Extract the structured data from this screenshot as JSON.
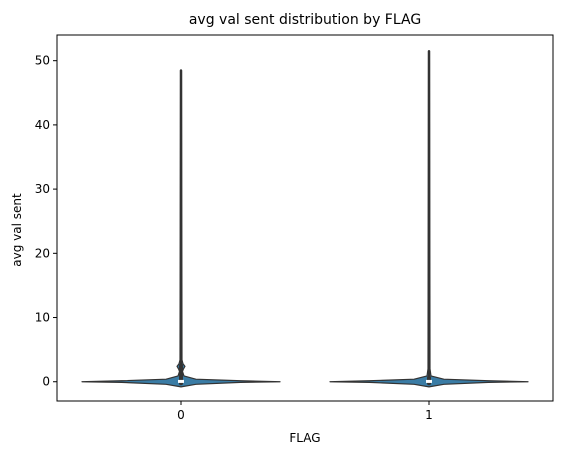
{
  "chart_data": {
    "type": "violin",
    "title": "avg val sent distribution by FLAG",
    "xlabel": "FLAG",
    "ylabel": "avg val sent",
    "categories": [
      "0",
      "1"
    ],
    "ylim": [
      -3,
      54
    ],
    "yticks": [
      0,
      10,
      20,
      30,
      40,
      50
    ],
    "grid": false,
    "legend": "none",
    "violin_color": "#3a7ca5",
    "edge_color": "#333333",
    "groups": [
      {
        "category": "0",
        "min": 0,
        "max": 48.5,
        "median": 0.05,
        "q1": 0,
        "q3": 0.1,
        "whisker_high": 2.5,
        "outlier_bulge_at": 2.4,
        "density": [
          {
            "y": -0.8,
            "w": 0.0
          },
          {
            "y": -0.4,
            "w": 0.15
          },
          {
            "y": -0.1,
            "w": 0.6
          },
          {
            "y": 0.0,
            "w": 1.0
          },
          {
            "y": 0.15,
            "w": 0.6
          },
          {
            "y": 0.4,
            "w": 0.15
          },
          {
            "y": 0.9,
            "w": 0.03
          },
          {
            "y": 1.6,
            "w": 0.015
          },
          {
            "y": 2.0,
            "w": 0.025
          },
          {
            "y": 2.4,
            "w": 0.04
          },
          {
            "y": 2.8,
            "w": 0.02
          },
          {
            "y": 3.4,
            "w": 0.01
          },
          {
            "y": 48.5,
            "w": 0.006
          }
        ]
      },
      {
        "category": "1",
        "min": 0,
        "max": 51.5,
        "median": 0.05,
        "q1": 0,
        "q3": 0.1,
        "whisker_high": 0.6,
        "density": [
          {
            "y": -0.8,
            "w": 0.0
          },
          {
            "y": -0.4,
            "w": 0.15
          },
          {
            "y": -0.1,
            "w": 0.6
          },
          {
            "y": 0.0,
            "w": 1.0
          },
          {
            "y": 0.15,
            "w": 0.6
          },
          {
            "y": 0.4,
            "w": 0.15
          },
          {
            "y": 0.9,
            "w": 0.02
          },
          {
            "y": 2.0,
            "w": 0.01
          },
          {
            "y": 51.5,
            "w": 0.006
          }
        ]
      }
    ]
  }
}
